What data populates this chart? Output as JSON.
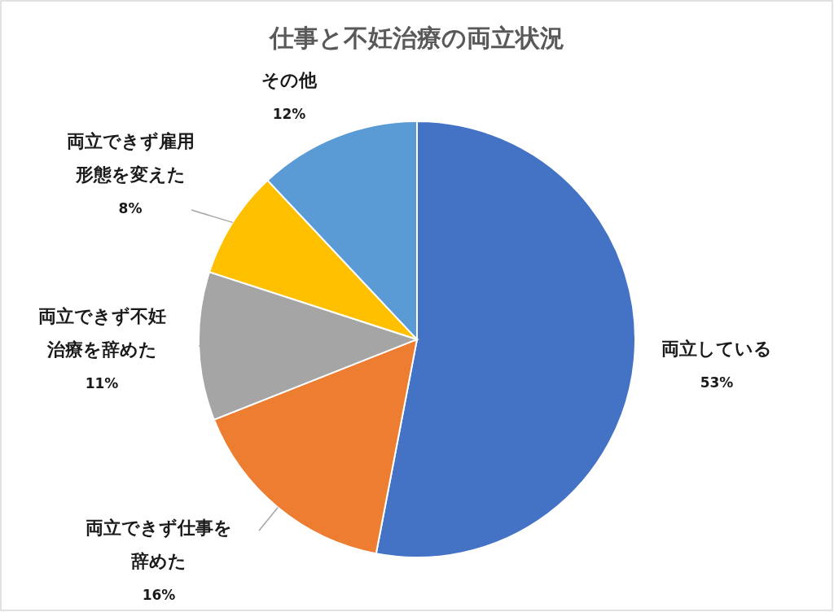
{
  "chart_data": {
    "type": "pie",
    "title": "仕事と不妊治療の両立状況",
    "categories": [
      "両立している",
      "両立できず仕事を辞めた",
      "両立できず不妊治療を辞めた",
      "両立できず雇用形態を変えた",
      "その他"
    ],
    "values": [
      53,
      16,
      11,
      8,
      12
    ],
    "colors": [
      "#4472c4",
      "#ed7d31",
      "#a5a5a5",
      "#ffc000",
      "#5b9bd5"
    ],
    "value_labels": [
      "53%",
      "16%",
      "11%",
      "8%",
      "12%"
    ]
  }
}
